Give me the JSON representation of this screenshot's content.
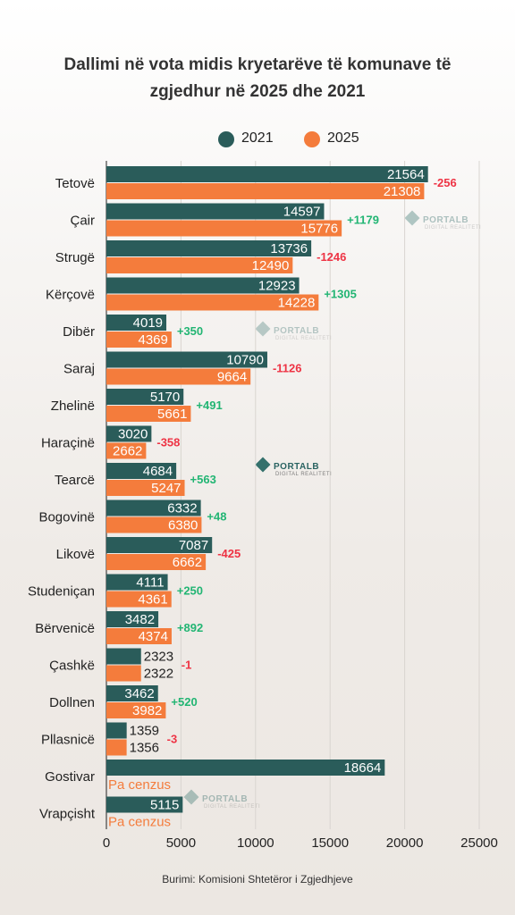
{
  "title_line1": "Dallimi në vota midis kryetarëve të komunave të",
  "title_line2": "zgjedhur në 2025 dhe 2021",
  "source": "Burimi: Komisioni Shtetëror i Zgjedhjeve",
  "watermark": {
    "brand": "PORTALB",
    "sub": "DIGITAL REALITETI"
  },
  "colors": {
    "s2021": "#2a5c5a",
    "s2025": "#f47c3c",
    "pos": "#22b573",
    "neg": "#ee3344",
    "axis": "#222222",
    "grid": "#d9d5d0"
  },
  "chart_data": {
    "type": "bar",
    "orientation": "horizontal",
    "title": "Dallimi në vota midis kryetarëve të komunave të zgjedhur në 2025 dhe 2021",
    "categories": [
      "Tetovë",
      "Çair",
      "Strugë",
      "Kërçovë",
      "Dibër",
      "Saraj",
      "Zhelinë",
      "Haraçinë",
      "Tearcë",
      "Bogovinë",
      "Likovë",
      "Studeniçan",
      "Bërvenicë",
      "Çashkë",
      "Dollnen",
      "Pllasnicë",
      "Gostivar",
      "Vrapçisht"
    ],
    "series": [
      {
        "name": "2021",
        "values": [
          21564,
          14597,
          13736,
          12923,
          4019,
          10790,
          5170,
          3020,
          4684,
          6332,
          7087,
          4111,
          3482,
          2323,
          3462,
          1359,
          18664,
          5115
        ]
      },
      {
        "name": "2025",
        "values": [
          21308,
          15776,
          12490,
          14228,
          4369,
          9664,
          5661,
          2662,
          5247,
          6380,
          6662,
          4361,
          4374,
          2322,
          3982,
          1356,
          null,
          null
        ]
      }
    ],
    "differences": [
      "-256",
      "+1179",
      "-1246",
      "+1305",
      "+350",
      "-1126",
      "+491",
      "-358",
      "+563",
      "+48",
      "-425",
      "+250",
      "+892",
      "-1",
      "+520",
      "-3",
      null,
      null
    ],
    "missing_label": "Pa cenzus",
    "xlim": [
      0,
      25000
    ],
    "xticks": [
      "0",
      "5000",
      "10000",
      "15000",
      "20000",
      "25000"
    ],
    "xtick_values": [
      0,
      5000,
      10000,
      15000,
      20000,
      25000
    ],
    "grid": true,
    "legend_position": "top"
  }
}
